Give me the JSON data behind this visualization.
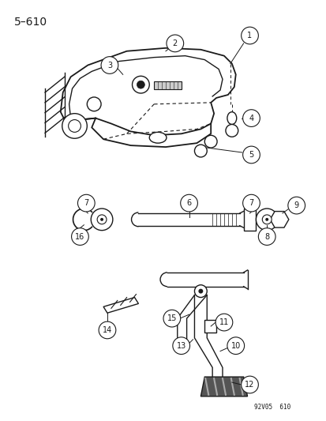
{
  "title": "5–610",
  "background_color": "#ffffff",
  "watermark": "92V05  610",
  "line_color": "#1a1a1a",
  "figsize": [
    4.14,
    5.33
  ],
  "dpi": 100
}
